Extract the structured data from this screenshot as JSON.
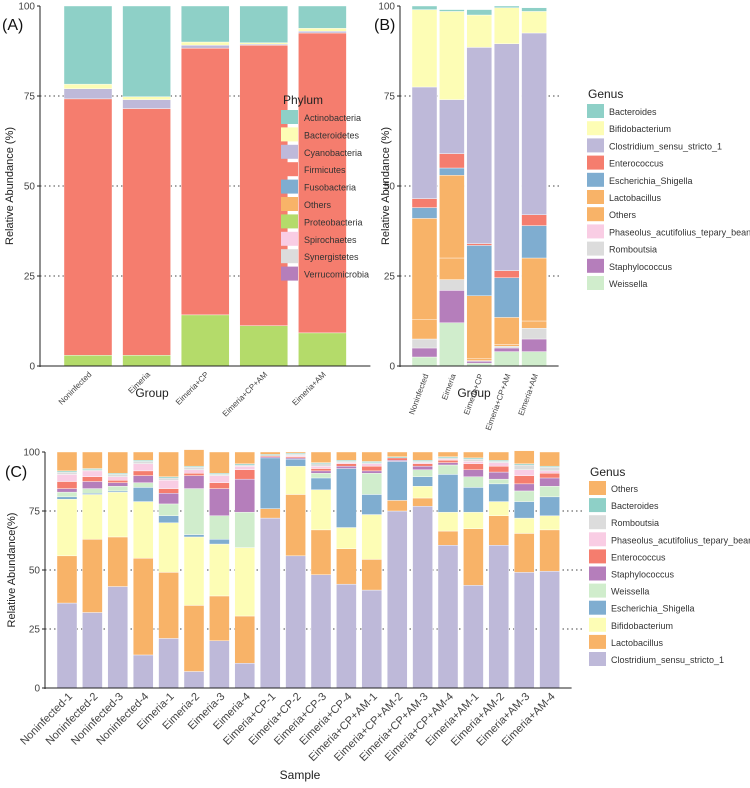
{
  "colors": {
    "Actinobacteria": "#8ED0C7",
    "Bacteroidetes": "#FDFDB5",
    "Cyanobacteria": "#BEB9D9",
    "Firmicutes": "#F57D6E",
    "Fusobacteria": "#7FADD0",
    "Others": "#F8B368",
    "Proteobacteria": "#B4DB6A",
    "Spirochaetes": "#F9CDE4",
    "Synergistetes": "#DCDCDC",
    "Verrucomicrobia": "#B57EBB",
    "Bacteroides": "#8ED0C7",
    "Bifidobacterium": "#FDFDB5",
    "Clostridium_sensu_stricto_1": "#BEB9D9",
    "Enterococcus": "#F57D6E",
    "Escherichia_Shigella": "#7FADD0",
    "Lactobacillus": "#F8B368",
    "Phaseolus_acutifolius_tepary_bean": "#F9CDE4",
    "Romboutsia": "#DCDCDC",
    "Staphylococcus": "#B57EBB",
    "Weissella": "#D0EDCC"
  },
  "chart_data": [
    {
      "type": "bar",
      "stacked": true,
      "panel_label": "(A)",
      "xlabel": "Group",
      "ylabel": "Relative Abundance (%)",
      "ylim": [
        0,
        100
      ],
      "yticks": [
        0,
        25,
        50,
        75,
        100
      ],
      "legend_title": "Phylum",
      "legend": [
        "Actinobacteria",
        "Bacteroidetes",
        "Cyanobacteria",
        "Firmicutes",
        "Fusobacteria",
        "Others",
        "Proteobacteria",
        "Spirochaetes",
        "Synergistetes",
        "Verrucomicrobia"
      ],
      "categories": [
        "Noninfected",
        "Eimeria",
        "Eimeria+CP",
        "Eimeria+CP+AM",
        "Eimeria+AM"
      ],
      "series": [
        {
          "name": "Verrucomicrobia",
          "values": [
            0,
            0,
            0,
            0,
            0
          ]
        },
        {
          "name": "Synergistetes",
          "values": [
            0,
            0,
            0,
            0,
            0
          ]
        },
        {
          "name": "Spirochaetes",
          "values": [
            0,
            0,
            0,
            0,
            0
          ]
        },
        {
          "name": "Proteobacteria",
          "values": [
            3,
            3,
            14.2,
            11.2,
            9.2
          ]
        },
        {
          "name": "Others",
          "values": [
            0,
            0,
            0,
            0,
            0
          ]
        },
        {
          "name": "Fusobacteria",
          "values": [
            0,
            0,
            0,
            0,
            0
          ]
        },
        {
          "name": "Firmicutes",
          "values": [
            71.2,
            68.5,
            74.1,
            77.9,
            83.3
          ]
        },
        {
          "name": "Cyanobacteria",
          "values": [
            2.8,
            2.5,
            0.8,
            0.3,
            0.5
          ]
        },
        {
          "name": "Bacteroidetes",
          "values": [
            1.3,
            0.8,
            0.9,
            0.4,
            0.8
          ]
        },
        {
          "name": "Actinobacteria",
          "values": [
            21.7,
            25.2,
            10,
            10.2,
            6.2
          ]
        }
      ]
    },
    {
      "type": "bar",
      "stacked": true,
      "panel_label": "(B)",
      "xlabel": "Group",
      "ylabel": "Relative Abundance (%)",
      "ylim": [
        0,
        100
      ],
      "yticks": [
        0,
        25,
        50,
        75,
        100
      ],
      "legend_title": "Genus",
      "legend": [
        "Bacteroides",
        "Bifidobacterium",
        "Clostridium_sensu_stricto_1",
        "Enterococcus",
        "Escherichia_Shigella",
        "Lactobacillus",
        "Others",
        "Phaseolus_acutifolius_tepary_bean",
        "Romboutsia",
        "Staphylococcus",
        "Weissella"
      ],
      "categories": [
        "Noninfected",
        "Eimeria",
        "Eimeria+CP",
        "Eimeria+CP+AM",
        "Eimeria+AM"
      ],
      "series": [
        {
          "name": "Weissella",
          "values": [
            2.5,
            12,
            0.8,
            4,
            4
          ]
        },
        {
          "name": "Staphylococcus",
          "values": [
            2.5,
            9,
            0.5,
            1,
            3.5
          ]
        },
        {
          "name": "Romboutsia",
          "values": [
            2.5,
            3,
            0.2,
            0.5,
            3
          ]
        },
        {
          "name": "Phaseolus_acutifolius_tepary_bean",
          "values": [
            0,
            0,
            0,
            0,
            0
          ]
        },
        {
          "name": "Others",
          "values": [
            5.5,
            6,
            0.5,
            0.5,
            2
          ]
        },
        {
          "name": "Lactobacillus",
          "values": [
            28,
            23,
            17.5,
            7.5,
            17.5
          ]
        },
        {
          "name": "Escherichia_Shigella",
          "values": [
            3,
            2,
            14,
            11,
            9
          ]
        },
        {
          "name": "Enterococcus",
          "values": [
            2.5,
            4,
            0.5,
            2,
            3
          ]
        },
        {
          "name": "Clostridium_sensu_stricto_1",
          "values": [
            31,
            15,
            54.5,
            63,
            50.5
          ]
        },
        {
          "name": "Bifidobacterium",
          "values": [
            21.5,
            24.5,
            9,
            10,
            6
          ]
        },
        {
          "name": "Bacteroides",
          "values": [
            1,
            0.5,
            1.5,
            0.5,
            1
          ]
        }
      ]
    },
    {
      "type": "bar",
      "stacked": true,
      "panel_label": "(C)",
      "xlabel": "Sample",
      "ylabel": "Relative Abundance(%)",
      "ylim": [
        0,
        100
      ],
      "yticks": [
        0,
        25,
        50,
        75,
        100
      ],
      "legend_title": "Genus",
      "legend": [
        "Others",
        "Bacteroides",
        "Romboutsia",
        "Phaseolus_acutifolius_tepary_bean",
        "Enterococcus",
        "Staphylococcus",
        "Weissella",
        "Escherichia_Shigella",
        "Bifidobacterium",
        "Lactobacillus",
        "Clostridium_sensu_stricto_1"
      ],
      "categories": [
        "Noninfected-1",
        "Noninfected-2",
        "Noninfected-3",
        "Noninfected-4",
        "Eimeria-1",
        "Eimeria-2",
        "Eimeria-3",
        "Eimeria-4",
        "Eimeria+CP-1",
        "Eimeria+CP-2",
        "Eimeria+CP-3",
        "Eimeria+CP-4",
        "Eimeria+CP+AM-1",
        "Eimeria+CP+AM-2",
        "Eimeria+CP+AM-3",
        "Eimeria+CP+AM-4",
        "Eimeria+AM-1",
        "Eimeria+AM-2",
        "Eimeria+AM-3",
        "Eimeria+AM-4"
      ],
      "series": [
        {
          "name": "Clostridium_sensu_stricto_1",
          "values": [
            36,
            32,
            43,
            14,
            21,
            7,
            20,
            10.5,
            72,
            56,
            48,
            44,
            41.5,
            75,
            77,
            60.5,
            43.5,
            60.5,
            49,
            49.5
          ]
        },
        {
          "name": "Lactobacillus",
          "values": [
            20,
            31,
            21,
            41,
            28,
            28,
            19,
            20,
            4,
            26,
            19,
            15,
            13,
            4.5,
            3.5,
            6,
            24,
            12.5,
            16.5,
            17.5
          ]
        },
        {
          "name": "Bifidobacterium",
          "values": [
            24,
            19,
            19,
            24,
            21,
            29,
            22,
            29,
            0,
            12,
            17,
            9,
            19,
            0,
            5,
            8,
            7,
            6,
            6.5,
            6
          ]
        },
        {
          "name": "Escherichia_Shigella",
          "values": [
            1,
            0.5,
            0.5,
            6,
            3,
            1,
            2,
            0,
            21.5,
            3,
            5,
            25,
            8.5,
            16.5,
            4,
            16,
            10.5,
            7.5,
            7,
            8
          ]
        },
        {
          "name": "Weissella",
          "values": [
            2,
            2,
            2,
            2,
            5,
            19.5,
            10,
            15,
            0,
            0,
            2,
            0,
            9,
            0,
            3,
            4,
            4.5,
            2,
            4.5,
            4.5
          ]
        },
        {
          "name": "Staphylococcus",
          "values": [
            1.5,
            3,
            1.5,
            3,
            4.5,
            5.5,
            11.5,
            14,
            0.5,
            0.5,
            1,
            1,
            1,
            0.5,
            1.5,
            1,
            3,
            3,
            3,
            3.5
          ]
        },
        {
          "name": "Enterococcus",
          "values": [
            3,
            2,
            1,
            2,
            2,
            1,
            2.5,
            4,
            0.5,
            0.5,
            1,
            1,
            2,
            1,
            1,
            1,
            2.5,
            2.5,
            3.5,
            2
          ]
        },
        {
          "name": "Phaseolus_acutifolius_tepary_bean",
          "values": [
            3,
            2.5,
            1.5,
            3,
            3.5,
            1.5,
            3,
            1.5,
            0,
            0.5,
            1,
            0.5,
            1,
            0,
            0.5,
            0.5,
            1,
            1.5,
            2.5,
            1
          ]
        },
        {
          "name": "Romboutsia",
          "values": [
            1,
            0.5,
            1,
            1,
            1,
            1,
            0.5,
            0.5,
            0,
            0.5,
            1,
            0.5,
            0.5,
            0,
            0.5,
            0.5,
            1,
            0.5,
            2,
            1.5
          ]
        },
        {
          "name": "Bacteroides",
          "values": [
            0.5,
            0.5,
            0.5,
            0.5,
            0.5,
            0.5,
            0.5,
            0.5,
            0.5,
            0.5,
            0.5,
            0.5,
            0.5,
            0.5,
            0.5,
            0.5,
            0.5,
            0.5,
            0.5,
            0.5
          ]
        },
        {
          "name": "Others",
          "values": [
            8,
            7,
            9,
            3.5,
            10.5,
            7,
            9,
            5,
            1,
            0.5,
            4.5,
            3.5,
            4,
            2,
            3.5,
            2,
            2.5,
            3.5,
            5.5,
            6
          ]
        }
      ]
    }
  ]
}
